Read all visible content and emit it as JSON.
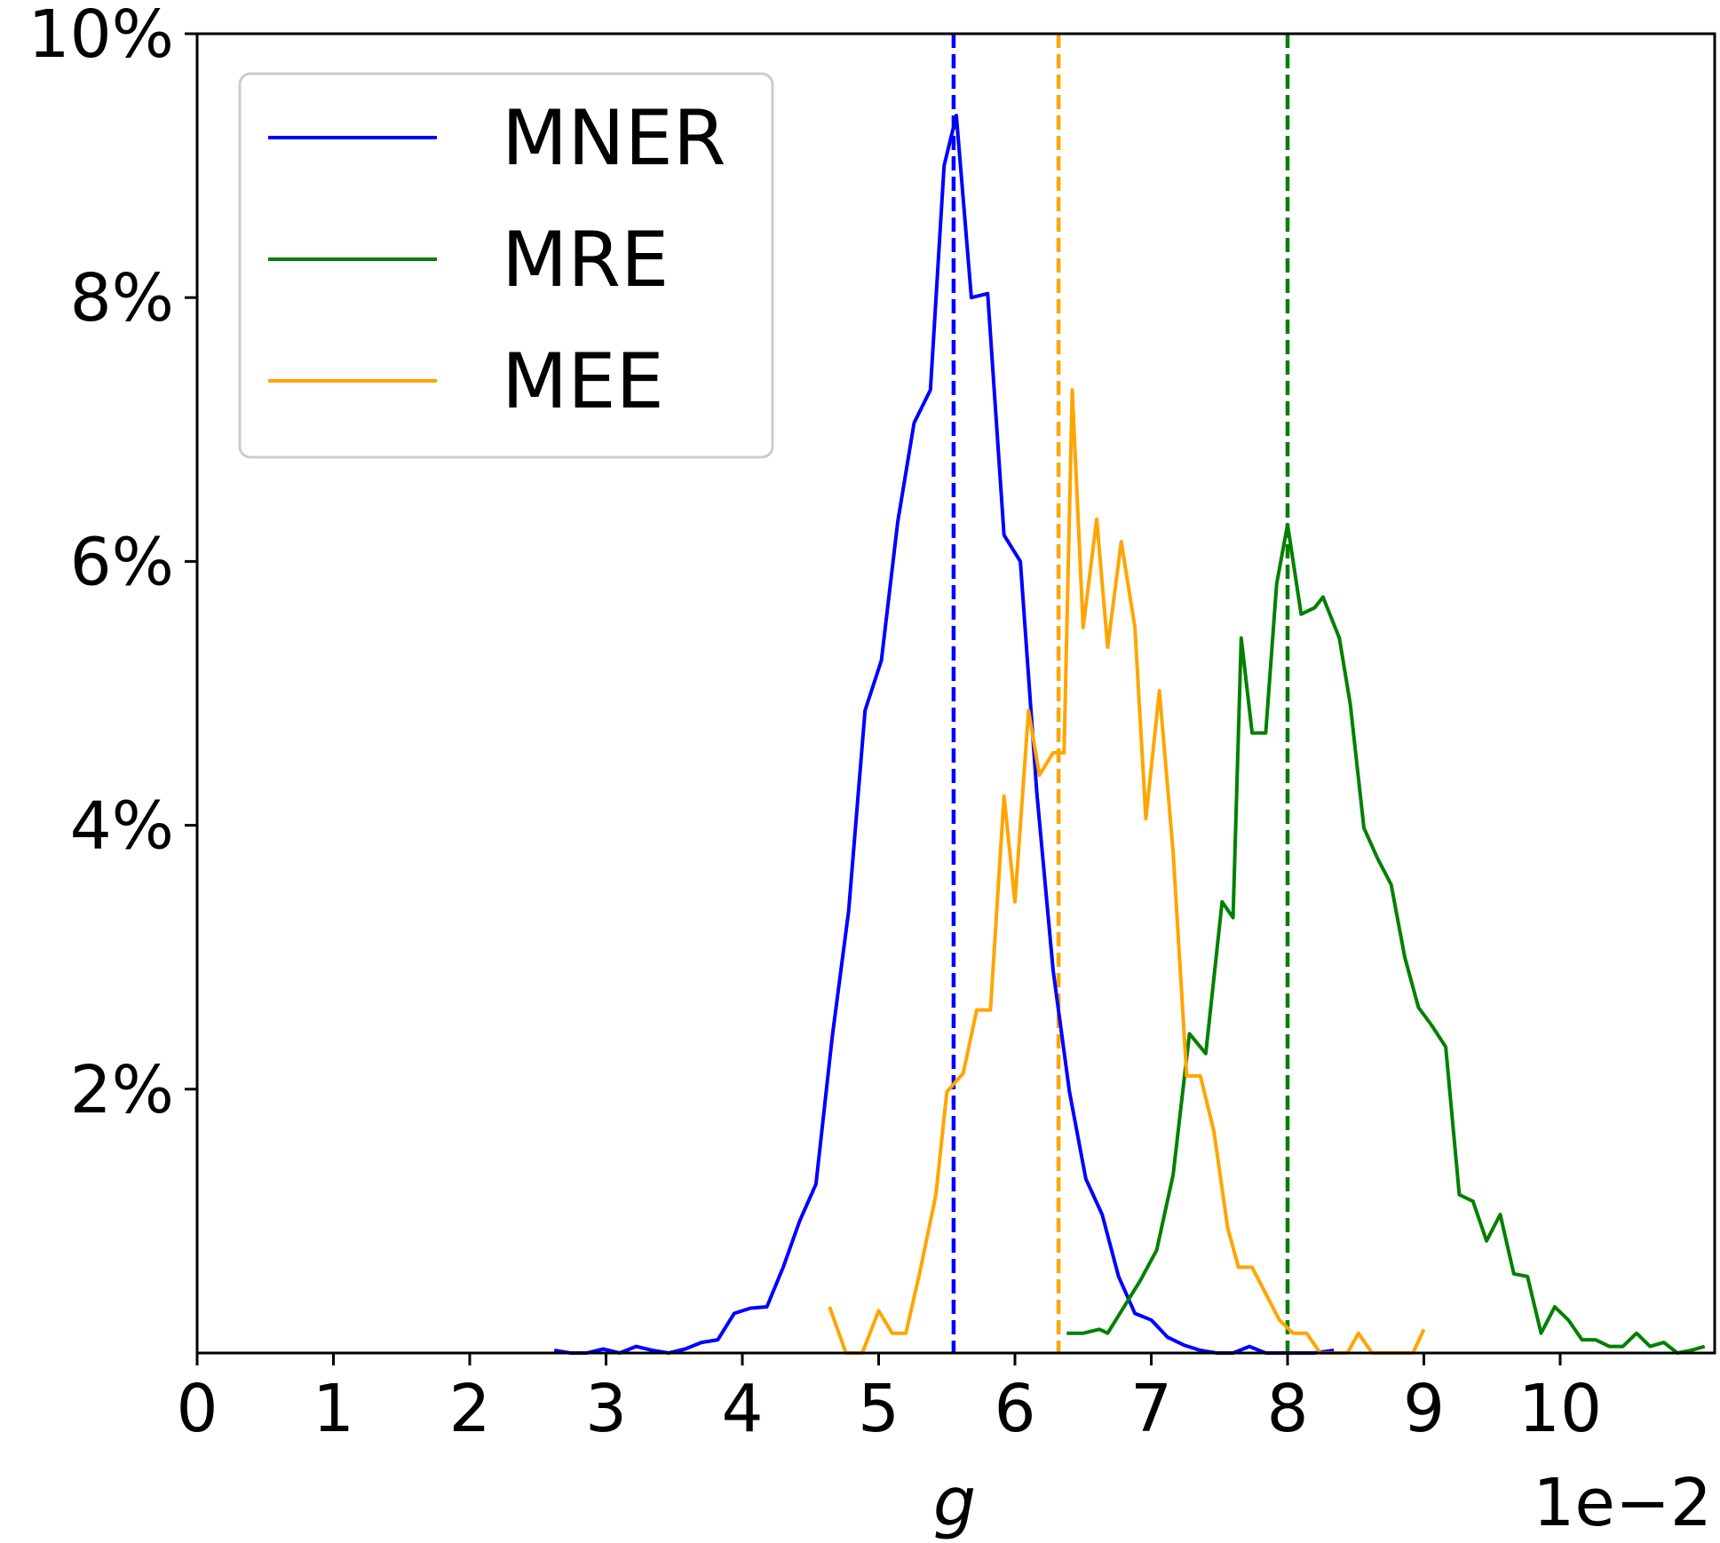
{
  "chart_data": {
    "type": "line",
    "title": "",
    "xlabel": "g",
    "ylabel": "",
    "x_offset_label": "1e−2",
    "xlim": [
      0,
      11.1
    ],
    "ylim": [
      0,
      10
    ],
    "x_ticks": [
      0,
      1,
      2,
      3,
      4,
      5,
      6,
      7,
      8,
      9,
      10
    ],
    "x_tick_labels": [
      "0",
      "1",
      "2",
      "3",
      "4",
      "5",
      "6",
      "7",
      "8",
      "9",
      "10"
    ],
    "y_ticks": [
      2,
      4,
      6,
      8,
      10
    ],
    "y_tick_labels": [
      "2%",
      "4%",
      "6%",
      "8%",
      "10%"
    ],
    "grid": false,
    "legend": {
      "position": "top-left"
    },
    "series": [
      {
        "name": "MNER",
        "color": "#0000ff",
        "mean": 5.55,
        "points": [
          [
            2.62,
            0.02
          ],
          [
            2.74,
            0.0
          ],
          [
            2.86,
            0.0
          ],
          [
            2.98,
            0.03
          ],
          [
            3.1,
            0.0
          ],
          [
            3.22,
            0.05
          ],
          [
            3.34,
            0.02
          ],
          [
            3.46,
            0.0
          ],
          [
            3.58,
            0.03
          ],
          [
            3.7,
            0.08
          ],
          [
            3.82,
            0.1
          ],
          [
            3.94,
            0.3
          ],
          [
            4.06,
            0.34
          ],
          [
            4.18,
            0.35
          ],
          [
            4.3,
            0.65
          ],
          [
            4.42,
            1.0
          ],
          [
            4.54,
            1.28
          ],
          [
            4.66,
            2.4
          ],
          [
            4.78,
            3.35
          ],
          [
            4.9,
            4.87
          ],
          [
            5.02,
            5.25
          ],
          [
            5.14,
            6.3
          ],
          [
            5.26,
            7.05
          ],
          [
            5.38,
            7.3
          ],
          [
            5.48,
            9.0
          ],
          [
            5.57,
            9.38
          ],
          [
            5.68,
            8.0
          ],
          [
            5.8,
            8.03
          ],
          [
            5.92,
            6.2
          ],
          [
            6.04,
            6.0
          ],
          [
            6.16,
            4.25
          ],
          [
            6.28,
            2.9
          ],
          [
            6.4,
            1.98
          ],
          [
            6.52,
            1.32
          ],
          [
            6.64,
            1.05
          ],
          [
            6.76,
            0.58
          ],
          [
            6.88,
            0.3
          ],
          [
            7.0,
            0.25
          ],
          [
            7.12,
            0.12
          ],
          [
            7.24,
            0.06
          ],
          [
            7.36,
            0.02
          ],
          [
            7.48,
            0.0
          ],
          [
            7.6,
            0.0
          ],
          [
            7.72,
            0.05
          ],
          [
            7.84,
            0.0
          ],
          [
            7.96,
            0.0
          ],
          [
            8.08,
            0.0
          ],
          [
            8.2,
            0.0
          ],
          [
            8.34,
            0.02
          ]
        ]
      },
      {
        "name": "MRE",
        "color": "#008000",
        "mean": 8.0,
        "points": [
          [
            6.38,
            0.15
          ],
          [
            6.5,
            0.15
          ],
          [
            6.62,
            0.18
          ],
          [
            6.68,
            0.15
          ],
          [
            6.8,
            0.35
          ],
          [
            6.92,
            0.55
          ],
          [
            7.04,
            0.78
          ],
          [
            7.16,
            1.35
          ],
          [
            7.28,
            2.42
          ],
          [
            7.4,
            2.27
          ],
          [
            7.52,
            3.42
          ],
          [
            7.6,
            3.3
          ],
          [
            7.66,
            5.42
          ],
          [
            7.74,
            4.7
          ],
          [
            7.84,
            4.7
          ],
          [
            7.92,
            5.83
          ],
          [
            8.0,
            6.28
          ],
          [
            8.1,
            5.6
          ],
          [
            8.2,
            5.65
          ],
          [
            8.26,
            5.73
          ],
          [
            8.38,
            5.42
          ],
          [
            8.46,
            4.92
          ],
          [
            8.56,
            3.98
          ],
          [
            8.66,
            3.75
          ],
          [
            8.76,
            3.55
          ],
          [
            8.86,
            3.0
          ],
          [
            8.96,
            2.62
          ],
          [
            9.06,
            2.48
          ],
          [
            9.16,
            2.32
          ],
          [
            9.26,
            1.2
          ],
          [
            9.36,
            1.15
          ],
          [
            9.46,
            0.85
          ],
          [
            9.56,
            1.05
          ],
          [
            9.66,
            0.6
          ],
          [
            9.76,
            0.58
          ],
          [
            9.86,
            0.15
          ],
          [
            9.96,
            0.35
          ],
          [
            10.06,
            0.25
          ],
          [
            10.16,
            0.1
          ],
          [
            10.26,
            0.1
          ],
          [
            10.36,
            0.05
          ],
          [
            10.46,
            0.05
          ],
          [
            10.56,
            0.15
          ],
          [
            10.66,
            0.05
          ],
          [
            10.76,
            0.08
          ],
          [
            10.86,
            0.0
          ],
          [
            10.96,
            0.02
          ],
          [
            11.06,
            0.05
          ]
        ]
      },
      {
        "name": "MEE",
        "color": "#ffa500",
        "mean": 6.32,
        "points": [
          [
            4.64,
            0.35
          ],
          [
            4.76,
            0.0
          ],
          [
            4.88,
            0.0
          ],
          [
            5.0,
            0.32
          ],
          [
            5.1,
            0.15
          ],
          [
            5.2,
            0.15
          ],
          [
            5.3,
            0.6
          ],
          [
            5.42,
            1.2
          ],
          [
            5.5,
            1.98
          ],
          [
            5.62,
            2.12
          ],
          [
            5.72,
            2.6
          ],
          [
            5.82,
            2.6
          ],
          [
            5.92,
            4.22
          ],
          [
            6.0,
            3.42
          ],
          [
            6.1,
            4.87
          ],
          [
            6.18,
            4.38
          ],
          [
            6.28,
            4.55
          ],
          [
            6.36,
            4.55
          ],
          [
            6.42,
            7.3
          ],
          [
            6.5,
            5.5
          ],
          [
            6.6,
            6.32
          ],
          [
            6.68,
            5.35
          ],
          [
            6.78,
            6.15
          ],
          [
            6.88,
            5.5
          ],
          [
            6.96,
            4.05
          ],
          [
            7.06,
            5.02
          ],
          [
            7.16,
            3.8
          ],
          [
            7.26,
            2.1
          ],
          [
            7.36,
            2.1
          ],
          [
            7.46,
            1.68
          ],
          [
            7.56,
            0.95
          ],
          [
            7.64,
            0.65
          ],
          [
            7.74,
            0.65
          ],
          [
            7.84,
            0.45
          ],
          [
            7.94,
            0.25
          ],
          [
            8.04,
            0.15
          ],
          [
            8.14,
            0.15
          ],
          [
            8.24,
            0.0
          ],
          [
            8.34,
            0.0
          ],
          [
            8.44,
            0.0
          ],
          [
            8.52,
            0.15
          ],
          [
            8.62,
            0.0
          ],
          [
            8.72,
            0.0
          ],
          [
            8.82,
            0.0
          ],
          [
            8.92,
            0.0
          ],
          [
            9.0,
            0.18
          ]
        ]
      }
    ]
  }
}
